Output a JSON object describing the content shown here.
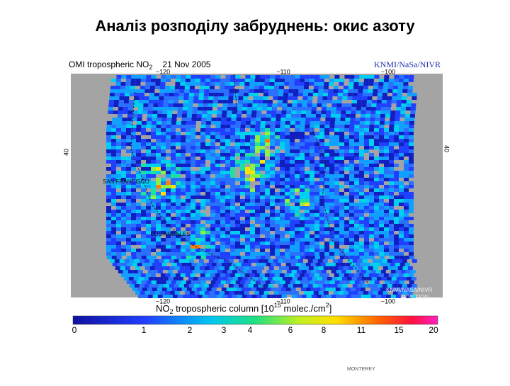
{
  "title": "Аналіз розподілу забруднень: окис азоту",
  "map": {
    "heading": {
      "name": "OMI tropospheric NO",
      "sub": "2",
      "date": "21 Nov 2005"
    },
    "credit": "KNMI/NaSa/NIVR",
    "top_lons": [
      "−120",
      "−110",
      "−100"
    ],
    "bottom_lons": [
      "−120",
      "−110",
      "−100"
    ],
    "left_lat": "40",
    "right_lat": "40",
    "cities": [
      "SAN FRANCISCO",
      "LOS ANGELES"
    ],
    "corner_credit": [
      "KNMI/NASA/NIVR",
      "POSITION"
    ]
  },
  "colorbar": {
    "label": {
      "name": "NO",
      "sub": "2",
      "text": " tropospheric column [10",
      "exp": "15",
      "unit": " molec./cm",
      "unit_exp": "2",
      "close": "]"
    },
    "ticks": [
      "0",
      "1",
      "2",
      "3",
      "4",
      "6",
      "8",
      "11",
      "15",
      "20"
    ]
  },
  "footer": "MONTEREY"
}
